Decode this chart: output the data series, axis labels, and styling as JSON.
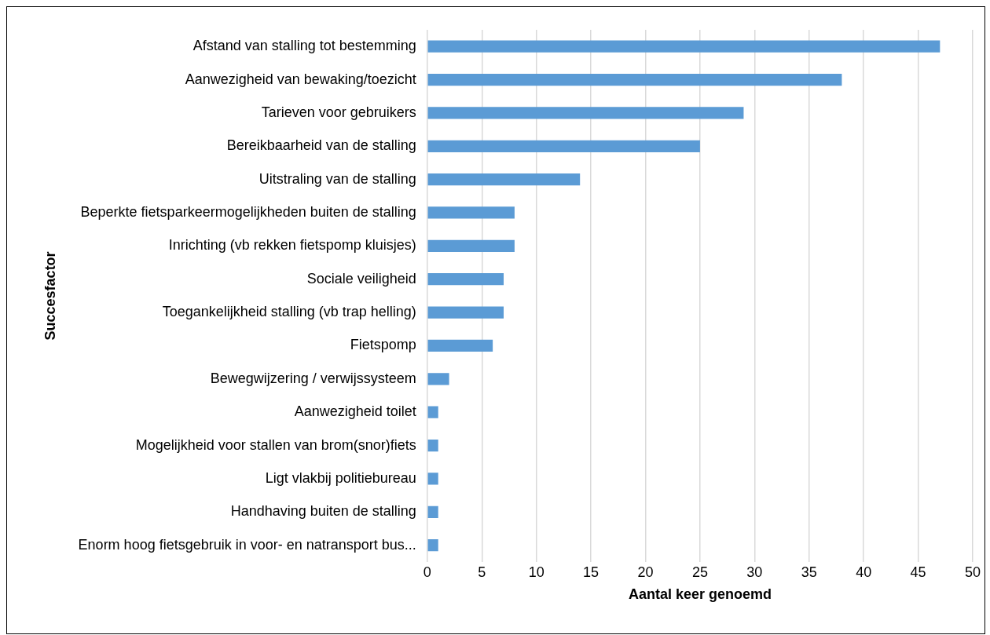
{
  "chart_data": {
    "type": "bar",
    "orientation": "horizontal",
    "xlabel": "Aantal keer genoemd",
    "ylabel": "Succesfactor",
    "categories": [
      "Afstand van stalling tot bestemming",
      "Aanwezigheid van bewaking/toezicht",
      "Tarieven voor gebruikers",
      "Bereikbaarheid van de stalling",
      "Uitstraling van de stalling",
      "Beperkte fietsparkeermogelijkheden buiten de stalling",
      "Inrichting (vb rekken fietspomp kluisjes)",
      "Sociale veiligheid",
      "Toegankelijkheid stalling (vb trap helling)",
      "Fietspomp",
      "Bewegwijzering / verwijssysteem",
      "Aanwezigheid toilet",
      "Mogelijkheid voor stallen van brom(snor)fiets",
      "Ligt vlakbij politiebureau",
      "Handhaving buiten de stalling",
      "Enorm hoog fietsgebruik in voor- en natransport bus..."
    ],
    "values": [
      47,
      38,
      29,
      25,
      14,
      8,
      8,
      7,
      7,
      6,
      2,
      1,
      1,
      1,
      1,
      1
    ],
    "color": "#5b9bd5",
    "xlim": [
      0,
      50
    ],
    "xticks": [
      0,
      5,
      10,
      15,
      20,
      25,
      30,
      35,
      40,
      45,
      50
    ],
    "grid": "x"
  }
}
